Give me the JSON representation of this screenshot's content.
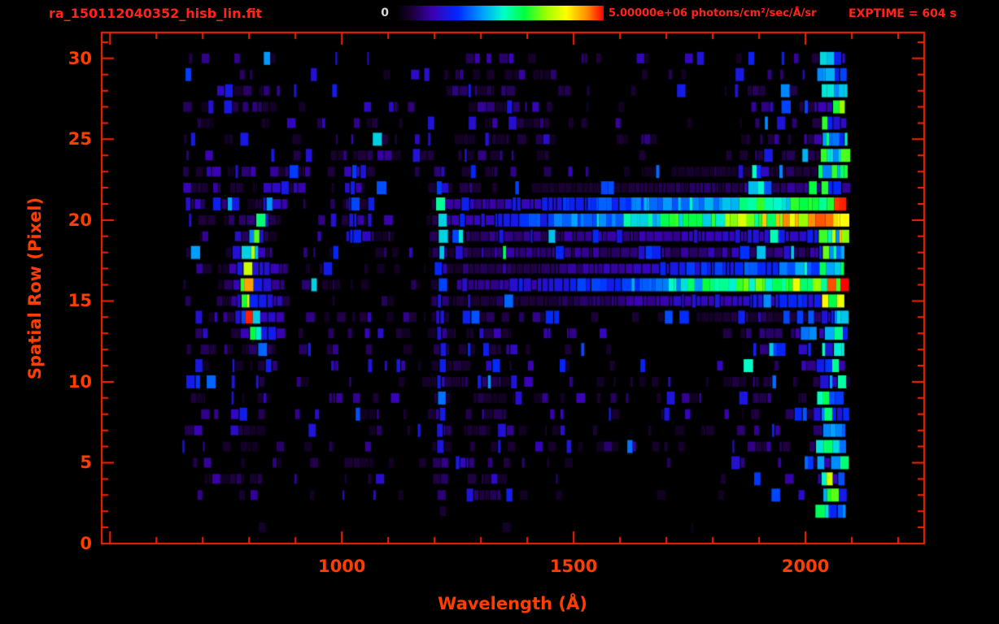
{
  "window": {
    "title": "ra_150112040352_hisb_lin.fit",
    "exptime_label": "EXPTIME = 604 s"
  },
  "colorbar": {
    "min_label": "0",
    "max_label": "5.00000e+06 photons/cm²/sec/Å/sr"
  },
  "colors": {
    "background": "#000000",
    "frame": "#ff2200",
    "labels": "#ff3d00",
    "header_text": "#ff241a",
    "colorbar_zero_label": "#d8d8d8"
  },
  "chart_data": {
    "type": "heatmap",
    "title": "ra_150112040352_hisb_lin.fit",
    "xlabel": "Wavelength (Å)",
    "ylabel": "Spatial Row (Pixel)",
    "x_range": [
      482,
      2256
    ],
    "y_range": [
      0,
      31.6
    ],
    "x_ticks_major": [
      1000,
      1500,
      2000
    ],
    "x_major_step": 500,
    "x_minor_step": 100,
    "y_ticks_major": [
      0,
      5,
      10,
      15,
      20,
      25,
      30
    ],
    "y_minor_step": 1,
    "exposure_time_s": 604,
    "colorbar": {
      "min_value": 0,
      "max_value": 5000000,
      "units": "photons/cm²/sec/Å/sr",
      "stops": [
        [
          0.0,
          "#000000"
        ],
        [
          0.08,
          "#1c0038"
        ],
        [
          0.18,
          "#3c00b4"
        ],
        [
          0.3,
          "#0028ff"
        ],
        [
          0.42,
          "#00a0ff"
        ],
        [
          0.52,
          "#00ffc8"
        ],
        [
          0.62,
          "#00ff3c"
        ],
        [
          0.72,
          "#96ff00"
        ],
        [
          0.82,
          "#ffff00"
        ],
        [
          0.92,
          "#ff8c00"
        ],
        [
          1.0,
          "#ff0000"
        ]
      ]
    },
    "data_extent": {
      "wavelength": [
        655,
        2090
      ],
      "rows": [
        0,
        30
      ]
    },
    "features": {
      "noise": {
        "max": 0.22,
        "row_density": [
          [
            0,
            0.02
          ],
          [
            1,
            0.06
          ],
          [
            2,
            0.12
          ],
          [
            3,
            0.5
          ],
          [
            4,
            0.7
          ],
          [
            5,
            0.85
          ],
          [
            6,
            1
          ],
          [
            29,
            1
          ],
          [
            30,
            0.8
          ],
          [
            31,
            0.3
          ]
        ],
        "boost_regions": [
          {
            "rows": [
              11,
              23.5
            ],
            "wavelengths": [
              1230,
              2090
            ],
            "factor": 1.35
          },
          {
            "rows": [
              2,
              30.5
            ],
            "wavelengths": [
              1870,
              2095
            ],
            "factor": 1.7
          },
          {
            "rows": [
              3,
              30.5
            ],
            "wavelengths": [
              655,
              690
            ],
            "factor": 1.6
          }
        ]
      },
      "arc": {
        "vertex_row": 15.9,
        "base_wavelength": 795,
        "curvature": 2.0,
        "sigma": 10,
        "halo_sigma": 26,
        "halo_amp": 0.32,
        "row_profile": [
          [
            10.6,
            0
          ],
          [
            11,
            0.3
          ],
          [
            12,
            0.4
          ],
          [
            13,
            0.82
          ],
          [
            14,
            0.97
          ],
          [
            15,
            1
          ],
          [
            16,
            1
          ],
          [
            17,
            0.96
          ],
          [
            18,
            0.8
          ],
          [
            19,
            0.6
          ],
          [
            20,
            0.52
          ],
          [
            21,
            0.46
          ],
          [
            22,
            0.38
          ],
          [
            23,
            0.3
          ],
          [
            23.8,
            0
          ]
        ],
        "trail": {
          "rows": [
            12.5,
            17.5
          ],
          "wavelength_end": 880,
          "amp": 0.3
        },
        "blob": {
          "rows": [
            19,
            23.5
          ],
          "wavelength_center": 1026,
          "sigma": 12,
          "amp": 0.32
        }
      },
      "lyman_alpha": {
        "wavelength": 1215,
        "sigma": 7,
        "halo_sigma": 17,
        "halo_amp": 0.3,
        "row_profile": [
          [
            1.2,
            0
          ],
          [
            2,
            0.08
          ],
          [
            4,
            0.2
          ],
          [
            7,
            0.3
          ],
          [
            12,
            0.32
          ],
          [
            16,
            0.34
          ],
          [
            18,
            0.42
          ],
          [
            19,
            0.52
          ],
          [
            20,
            0.56
          ],
          [
            21,
            0.55
          ],
          [
            22,
            0.45
          ],
          [
            23,
            0.25
          ],
          [
            23.6,
            0
          ]
        ]
      },
      "upper_band": {
        "row_center": 20.3,
        "row_sigma": 0.85,
        "halo_sigma": 1.9,
        "halo_amp": 0.25,
        "ramp": [
          [
            1230,
            0.2
          ],
          [
            1350,
            0.27
          ],
          [
            1500,
            0.38
          ],
          [
            1650,
            0.5
          ],
          [
            1800,
            0.64
          ],
          [
            1900,
            0.74
          ],
          [
            1980,
            0.82
          ],
          [
            2070,
            0.86
          ]
        ]
      },
      "lower_band": {
        "row_center": 16.1,
        "row_sigma": 0.8,
        "halo_sigma": 1.8,
        "halo_amp": 0.22,
        "ramp": [
          [
            1250,
            0.14
          ],
          [
            1400,
            0.2
          ],
          [
            1550,
            0.3
          ],
          [
            1700,
            0.45
          ],
          [
            1850,
            0.58
          ],
          [
            1950,
            0.65
          ],
          [
            2070,
            0.72
          ]
        ]
      },
      "inter_band": {
        "rows": [
          17.2,
          19.2
        ],
        "wavelengths": [
          1250,
          2085
        ],
        "amp": 0.14
      },
      "edge_column": {
        "wavelengths": [
          2030,
          2088
        ],
        "base": 0.45,
        "band_boost": 0.35
      }
    }
  }
}
